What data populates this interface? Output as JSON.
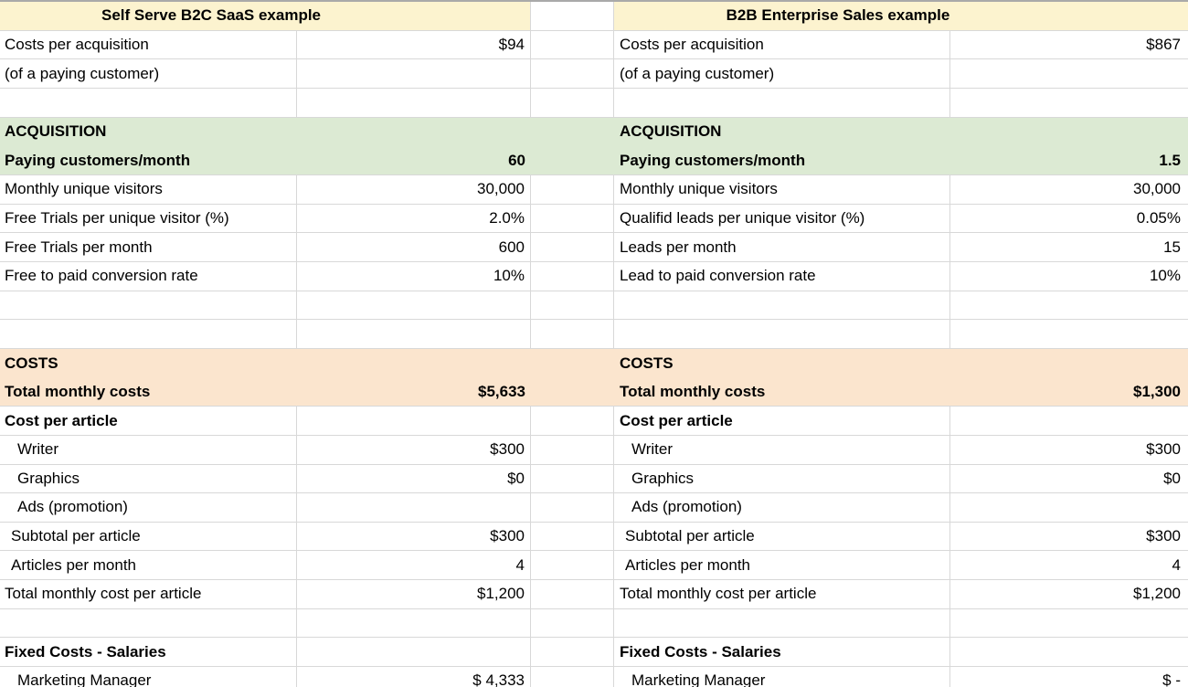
{
  "palette": {
    "header_bg": "#FCF3CF",
    "acquisition_bg": "#DCEAD3",
    "costs_bg": "#FBE5CE",
    "gridline": "#D8D8D8",
    "top_edge": "#A9A9A9",
    "text": "#000000"
  },
  "left_table": {
    "title": "Self Serve B2C SaaS example"
  },
  "right_table": {
    "title": "B2B Enterprise Sales example"
  },
  "rows": [
    {
      "type": "header"
    },
    {
      "type": "data",
      "left": {
        "label": "Costs per acquisition",
        "value": "$94"
      },
      "right": {
        "label": "Costs per acquisition",
        "value": "$867"
      }
    },
    {
      "type": "data",
      "left": {
        "label": "(of a paying customer)"
      },
      "right": {
        "label": "(of a paying customer)"
      }
    },
    {
      "type": "empty"
    },
    {
      "type": "band",
      "band": "acquisition",
      "noBottom": true,
      "left": {
        "label": "ACQUISITION",
        "bold": true
      },
      "right": {
        "label": "ACQUISITION",
        "bold": true
      }
    },
    {
      "type": "band",
      "band": "acquisition",
      "left": {
        "label": "Paying customers/month",
        "value": "60",
        "bold": true
      },
      "right": {
        "label": "Paying customers/month",
        "value": "1.5",
        "bold": true
      }
    },
    {
      "type": "data",
      "left": {
        "label": "Monthly unique visitors",
        "value": "30,000"
      },
      "right": {
        "label": "Monthly unique visitors",
        "value": "30,000"
      }
    },
    {
      "type": "data",
      "left": {
        "label": "Free Trials per unique visitor (%)",
        "value": "2.0%"
      },
      "right": {
        "label": "Qualifid leads per unique visitor (%)",
        "value": "0.05%"
      }
    },
    {
      "type": "data",
      "left": {
        "label": "Free Trials per month",
        "value": "600"
      },
      "right": {
        "label": "Leads per month",
        "value": "15"
      }
    },
    {
      "type": "data",
      "left": {
        "label": "Free to paid conversion rate",
        "value": "10%"
      },
      "right": {
        "label": "Lead to paid conversion rate",
        "value": "10%"
      }
    },
    {
      "type": "empty"
    },
    {
      "type": "empty"
    },
    {
      "type": "band",
      "band": "costs",
      "noBottom": true,
      "left": {
        "label": "COSTS",
        "bold": true
      },
      "right": {
        "label": "COSTS",
        "bold": true
      }
    },
    {
      "type": "band",
      "band": "costs",
      "left": {
        "label": "Total monthly costs",
        "value": "$5,633",
        "bold": true
      },
      "right": {
        "label": "Total monthly costs",
        "value": "$1,300",
        "bold": true
      }
    },
    {
      "type": "data",
      "left": {
        "label": "Cost per article",
        "bold": true
      },
      "right": {
        "label": "Cost per article",
        "bold": true
      }
    },
    {
      "type": "data",
      "left": {
        "label": "Writer",
        "value": "$300",
        "indent": 2
      },
      "right": {
        "label": "Writer",
        "value": "$300",
        "indent": 2
      }
    },
    {
      "type": "data",
      "left": {
        "label": "Graphics",
        "value": "$0",
        "indent": 2
      },
      "right": {
        "label": "Graphics",
        "value": "$0",
        "indent": 2
      }
    },
    {
      "type": "data",
      "left": {
        "label": "Ads (promotion)",
        "indent": 2
      },
      "right": {
        "label": "Ads (promotion)",
        "indent": 2
      }
    },
    {
      "type": "data",
      "left": {
        "label": "Subtotal per article",
        "value": "$300",
        "indent": 1
      },
      "right": {
        "label": "Subtotal per article",
        "value": "$300",
        "indent": 1
      }
    },
    {
      "type": "data",
      "left": {
        "label": "Articles per month",
        "value": "4",
        "indent": 1
      },
      "right": {
        "label": "Articles per month",
        "value": "4",
        "indent": 1
      }
    },
    {
      "type": "data",
      "left": {
        "label": "Total monthly cost per article",
        "value": "$1,200"
      },
      "right": {
        "label": "Total monthly cost per article",
        "value": "$1,200"
      }
    },
    {
      "type": "empty"
    },
    {
      "type": "data",
      "left": {
        "label": "Fixed Costs - Salaries",
        "bold": true
      },
      "right": {
        "label": "Fixed Costs - Salaries",
        "bold": true
      }
    },
    {
      "type": "data",
      "left": {
        "label": "Marketing Manager",
        "value": "$ 4,333",
        "indent": 2
      },
      "right": {
        "label": "Marketing Manager",
        "value": "$ -",
        "indent": 2
      }
    }
  ]
}
